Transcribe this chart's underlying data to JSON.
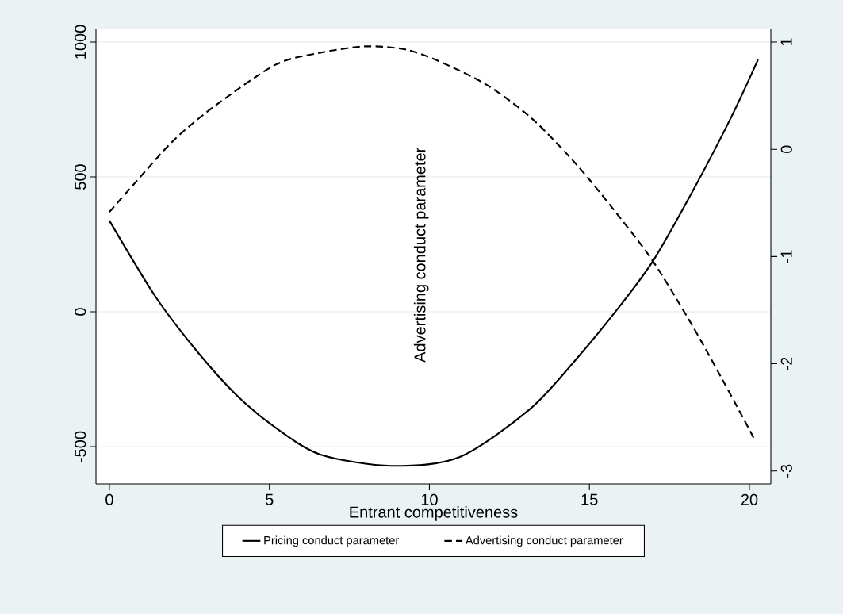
{
  "chart_data": {
    "type": "line",
    "xlabel": "Entrant competitiveness",
    "annotations": [
      "Advertising conduct parameter"
    ],
    "series": [
      {
        "name": "Pricing conduct parameter",
        "color": "#000000",
        "line_style": "solid",
        "x": [
          0,
          1.44,
          2.68,
          3.92,
          5.15,
          6.59,
          8.82,
          10.95,
          13.13,
          14.52,
          15.91,
          17.0,
          18.24,
          19.43,
          20.27
        ],
        "values": [
          338,
          56,
          -138,
          -303,
          -426,
          -529,
          -571,
          -538,
          -362,
          -185,
          15,
          191,
          450,
          721,
          935
        ]
      },
      {
        "name": "Advertising conduct parameter",
        "color": "#000000",
        "line_style": "dashed",
        "axis": "y2",
        "x": [
          0,
          0.84,
          2.03,
          3.32,
          5.2,
          6.59,
          7.98,
          9.27,
          10.46,
          11.85,
          13.23,
          14.62,
          15.91,
          17.0,
          18.19,
          19.18,
          20.17
        ],
        "values": [
          -0.585,
          -0.3,
          0.09,
          0.41,
          0.79,
          0.9,
          0.96,
          0.93,
          0.8,
          0.59,
          0.28,
          -0.15,
          -0.62,
          -1.05,
          -1.63,
          -2.16,
          -2.71
        ]
      }
    ],
    "xlim": [
      -0.42,
      20.67
    ],
    "xticks": [
      0,
      5,
      10,
      15,
      20
    ],
    "ylim": [
      -638,
      1050
    ],
    "yticks": [
      -500,
      0,
      500,
      1000
    ],
    "y2lim": [
      -3.12,
      1.126
    ],
    "y2ticks": [
      -3,
      -2,
      -1,
      0,
      1
    ],
    "grid": "y",
    "legend": "bottom"
  }
}
